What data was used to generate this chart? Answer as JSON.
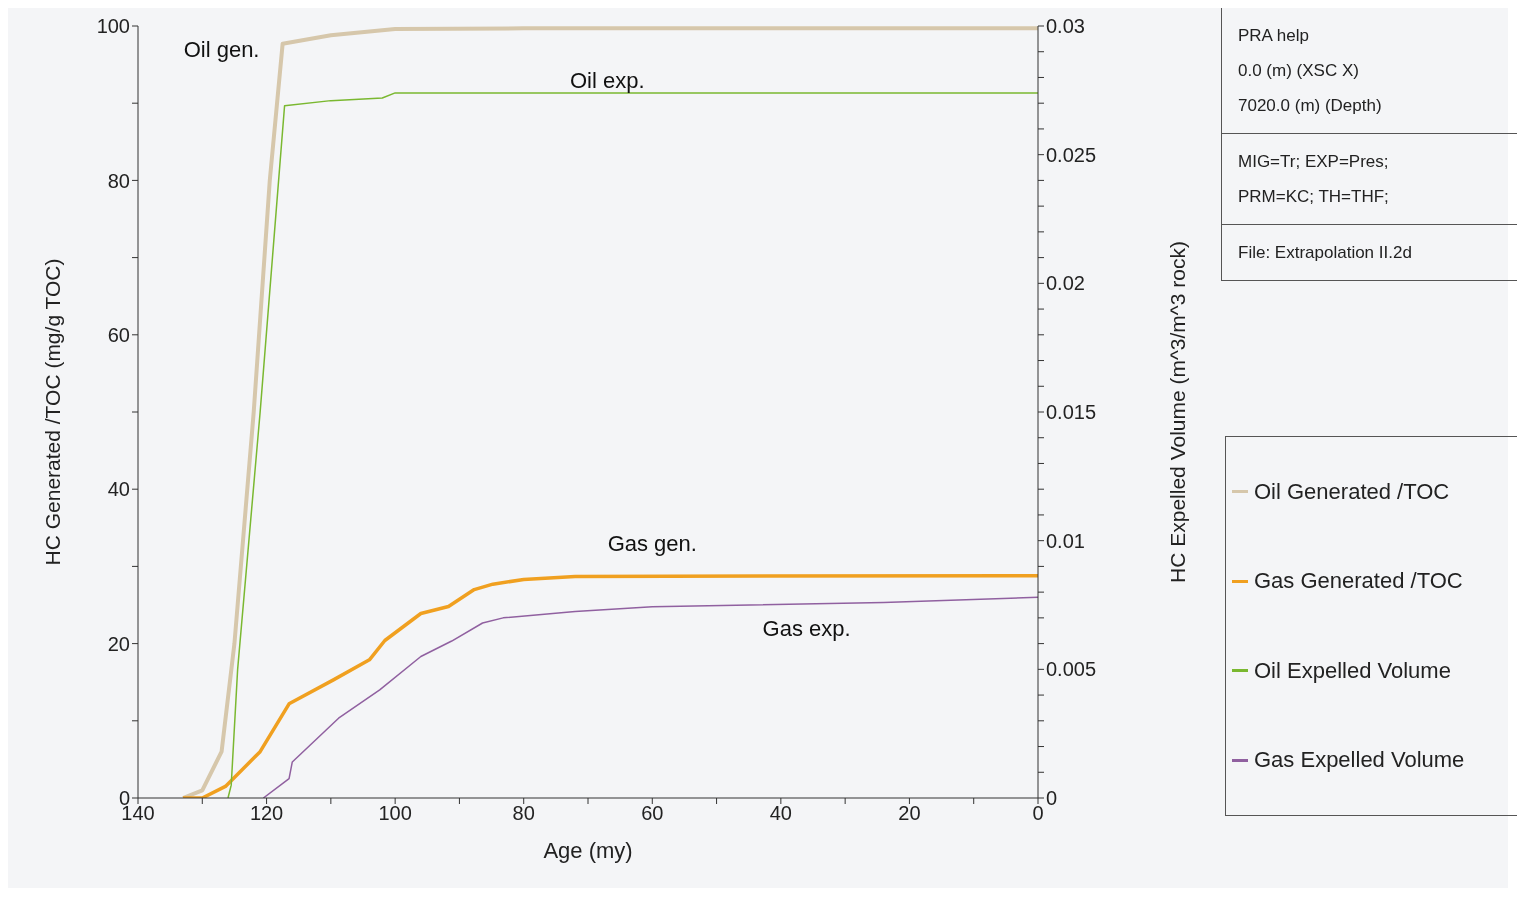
{
  "chart_data": {
    "type": "line",
    "xlabel": "Age (my)",
    "ylabel": "HC Generated /TOC (mg/g TOC)",
    "y2label": "HC Expelled Volume (m^3/m^3 rock)",
    "xlim": [
      140,
      0
    ],
    "xticks": [
      140,
      {
        "value": 130,
        "label": null
      },
      120,
      {
        "value": 110,
        "label": null
      },
      100,
      {
        "value": 90,
        "label": null
      },
      80,
      {
        "value": 70,
        "label": null
      },
      60,
      {
        "value": 50,
        "label": null
      },
      40,
      {
        "value": 30,
        "label": null
      },
      20,
      {
        "value": 10,
        "label": null
      },
      0
    ],
    "ylim": [
      0,
      100
    ],
    "yticks": [
      0,
      {
        "value": 10,
        "label": null
      },
      20,
      {
        "value": 30,
        "label": null
      },
      40,
      {
        "value": 50,
        "label": null
      },
      60,
      {
        "value": 70,
        "label": null
      },
      80,
      {
        "value": 90,
        "label": null
      },
      100
    ],
    "y2lim": [
      0,
      0.03
    ],
    "y2ticks": [
      0,
      {
        "value": 0.001,
        "label": null
      },
      {
        "value": 0.002,
        "label": null
      },
      {
        "value": 0.003,
        "label": null
      },
      {
        "value": 0.004,
        "label": null
      },
      0.005,
      {
        "value": 0.006,
        "label": null
      },
      {
        "value": 0.007,
        "label": null
      },
      {
        "value": 0.008,
        "label": null
      },
      {
        "value": 0.009,
        "label": null
      },
      0.01,
      {
        "value": 0.011,
        "label": null
      },
      {
        "value": 0.012,
        "label": null
      },
      {
        "value": 0.013,
        "label": null
      },
      {
        "value": 0.014,
        "label": null
      },
      0.015,
      {
        "value": 0.016,
        "label": null
      },
      {
        "value": 0.017,
        "label": null
      },
      {
        "value": 0.018,
        "label": null
      },
      {
        "value": 0.019,
        "label": null
      },
      0.02,
      {
        "value": 0.021,
        "label": null
      },
      {
        "value": 0.022,
        "label": null
      },
      {
        "value": 0.023,
        "label": null
      },
      {
        "value": 0.024,
        "label": null
      },
      0.025,
      {
        "value": 0.026,
        "label": null
      },
      {
        "value": 0.027,
        "label": null
      },
      {
        "value": 0.028,
        "label": null
      },
      {
        "value": 0.029,
        "label": null
      },
      0.03
    ],
    "legend": "right",
    "marker": "none",
    "line_style": "solid",
    "series": [
      {
        "name": "Oil Generated /TOC",
        "color": "#d6c7ab",
        "x": [
          133,
          130,
          127,
          125,
          122,
          119.5,
          117.5,
          110,
          100,
          80,
          0
        ],
        "values": [
          0,
          1,
          6,
          20,
          50,
          80,
          97.7,
          98.8,
          99.6,
          99.7,
          99.7
        ]
      },
      {
        "name": "Gas Generated /TOC",
        "color": "#f0a020",
        "x": [
          133,
          130,
          126.4,
          121,
          116.5,
          109.6,
          104,
          101.6,
          96,
          91.7,
          87.7,
          84.8,
          80,
          72,
          0
        ],
        "values": [
          0,
          0,
          1.5,
          6,
          12.2,
          15.3,
          17.9,
          20.4,
          23.9,
          24.8,
          27,
          27.7,
          28.3,
          28.7,
          28.8
        ]
      },
      {
        "name": "Oil Expelled Volume",
        "color": "#7ab830",
        "axis": "y2",
        "x": [
          126,
          125.5,
          124.5,
          121,
          117.2,
          110,
          102,
          100,
          0
        ],
        "values": [
          0,
          0.0005,
          0.005,
          0.015,
          0.0269,
          0.0271,
          0.0272,
          0.0274,
          0.0274
        ]
      },
      {
        "name": "Gas Expelled Volume",
        "color": "#9060a0",
        "axis": "y2",
        "x": [
          120.5,
          116.5,
          116,
          108.8,
          102.4,
          96,
          91.2,
          86.4,
          83.2,
          72,
          60,
          24,
          0
        ],
        "values": [
          0,
          0.00075,
          0.0014,
          0.0031,
          0.0042,
          0.0055,
          0.0061,
          0.0068,
          0.007,
          0.00725,
          0.00743,
          0.0076,
          0.0078
        ]
      }
    ],
    "annotations": [
      "Oil gen.",
      "Oil exp.",
      "Gas gen.",
      "Gas exp.",
      "PRA help",
      "0.0 (m) (XSC X)",
      "7020.0 (m) (Depth)",
      "MIG=Tr; EXP=Pres;",
      "PRM=KC; TH=THF;",
      "File: Extrapolation II.2d"
    ]
  }
}
